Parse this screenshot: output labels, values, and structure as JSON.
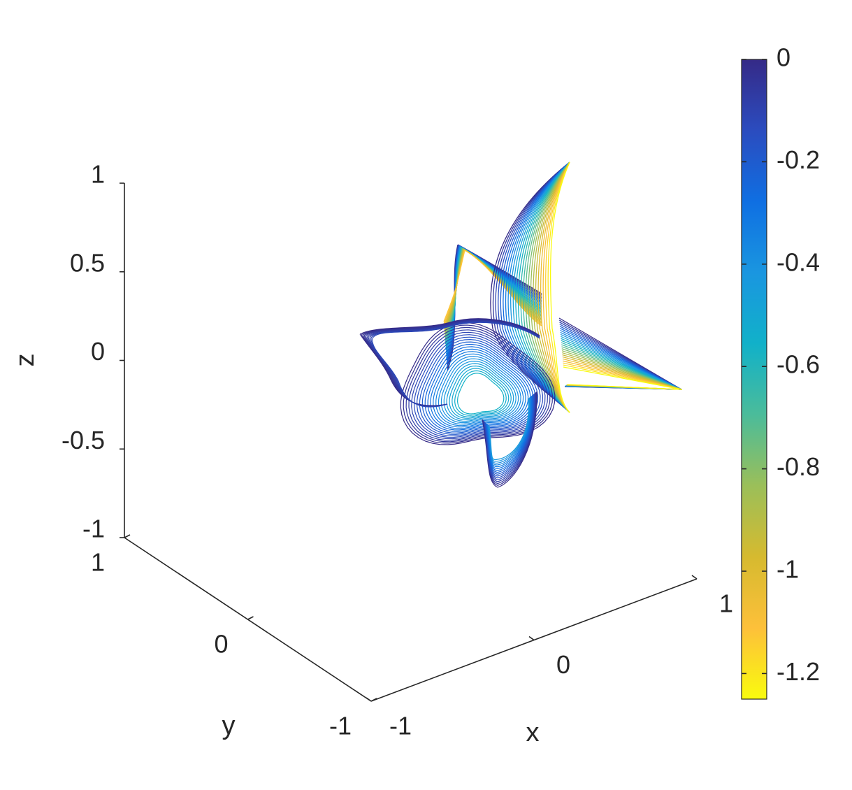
{
  "chart_data": {
    "type": "contour3",
    "title": "",
    "axes": {
      "x": {
        "label": "x",
        "lim": [
          -1,
          1
        ],
        "ticks": [
          -1,
          0,
          1
        ],
        "tick_labels": [
          "-1",
          "0",
          "1"
        ]
      },
      "y": {
        "label": "y",
        "lim": [
          -1,
          1
        ],
        "ticks": [
          -1,
          0,
          1
        ],
        "tick_labels": [
          "-1",
          "0",
          "1"
        ]
      },
      "z": {
        "label": "z",
        "lim": [
          -1,
          1
        ],
        "ticks": [
          -1,
          -0.5,
          0,
          0.5,
          1
        ],
        "tick_labels": [
          "-1",
          "-0.5",
          "0",
          "0.5",
          "1"
        ]
      }
    },
    "grid": false,
    "colorbar": {
      "location": "right",
      "colormap": "parula",
      "range": [
        -1.25,
        0
      ],
      "ticks": [
        0,
        -0.2,
        -0.4,
        -0.6,
        -0.8,
        -1,
        -1.2
      ],
      "tick_labels": [
        "0",
        "-0.2",
        "-0.4",
        "-0.6",
        "-0.8",
        "-1",
        "-1.2"
      ],
      "colors": [
        "#f9fb0e",
        "#fdc03a",
        "#d6ba2f",
        "#9bbf59",
        "#4bbc9a",
        "#11b1c9",
        "#1a96e0",
        "#0f6fe2",
        "#2b4cbf",
        "#352a87"
      ]
    },
    "contour_levels": {
      "min": -1.25,
      "max": 0,
      "count": 25
    }
  }
}
